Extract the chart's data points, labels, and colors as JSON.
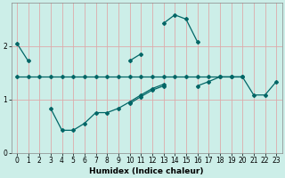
{
  "xlabel": "Humidex (Indice chaleur)",
  "background_color": "#cceee8",
  "grid_color": "#ddaaaa",
  "line_color": "#006666",
  "x": [
    0,
    1,
    2,
    3,
    4,
    5,
    6,
    7,
    8,
    9,
    10,
    11,
    12,
    13,
    14,
    15,
    16,
    17,
    18,
    19,
    20,
    21,
    22,
    23
  ],
  "y1": [
    2.05,
    1.72,
    null,
    null,
    null,
    null,
    null,
    null,
    null,
    null,
    1.72,
    1.85,
    null,
    2.42,
    2.58,
    2.5,
    2.08,
    null,
    null,
    null,
    null,
    null,
    null,
    null
  ],
  "y2": [
    1.42,
    1.42,
    1.42,
    1.42,
    1.42,
    1.42,
    1.42,
    1.42,
    1.42,
    1.42,
    1.42,
    1.42,
    1.42,
    1.42,
    1.42,
    1.42,
    1.42,
    1.42,
    1.42,
    1.42,
    1.42,
    null,
    null,
    null
  ],
  "y3": [
    null,
    null,
    null,
    0.83,
    0.42,
    0.42,
    0.55,
    0.75,
    0.75,
    0.83,
    0.95,
    1.08,
    1.2,
    1.28,
    null,
    null,
    null,
    null,
    null,
    null,
    null,
    null,
    null,
    null
  ],
  "y4": [
    null,
    null,
    null,
    null,
    null,
    null,
    null,
    null,
    null,
    null,
    0.92,
    1.05,
    1.17,
    1.25,
    null,
    null,
    1.25,
    1.33,
    1.42,
    1.42,
    1.42,
    1.08,
    1.08,
    1.33
  ],
  "ylim": [
    0,
    2.8
  ],
  "xlim": [
    -0.5,
    23.5
  ],
  "yticks": [
    0,
    1,
    2
  ],
  "xticks": [
    0,
    1,
    2,
    3,
    4,
    5,
    6,
    7,
    8,
    9,
    10,
    11,
    12,
    13,
    14,
    15,
    16,
    17,
    18,
    19,
    20,
    21,
    22,
    23
  ]
}
